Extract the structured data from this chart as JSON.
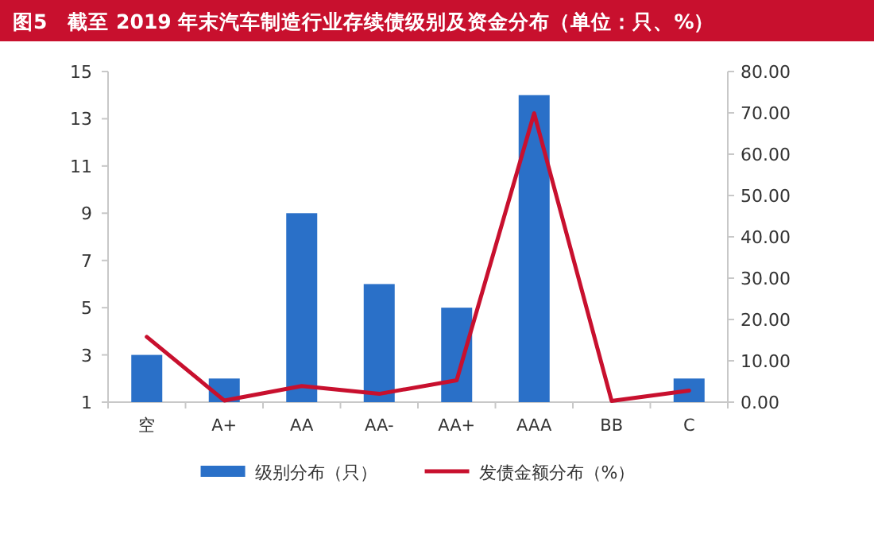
{
  "chart_data": {
    "type": "bar",
    "title": "图5　截至 2019 年末汽车制造行业存续债级别及资金分布（单位：只、%）",
    "categories": [
      "空",
      "A+",
      "AA",
      "AA-",
      "AA+",
      "AAA",
      "BB",
      "C"
    ],
    "series": [
      {
        "name": "级别分布（只）",
        "color": "#2a70c8",
        "values": [
          3,
          2,
          9,
          6,
          5,
          14,
          1,
          2
        ]
      },
      {
        "name": "发债金额分布（%）",
        "type": "line",
        "axis": "y2",
        "color": "#c8102e",
        "values": [
          15.8,
          0.4,
          3.9,
          2.0,
          5.3,
          69.9,
          0.3,
          2.8
        ]
      }
    ],
    "ylim": [
      1,
      15
    ],
    "yticks": [
      1,
      3,
      5,
      7,
      9,
      11,
      13,
      15
    ],
    "y2lim": [
      0,
      80
    ],
    "y2ticks": [
      {
        "value": 0,
        "label": "0.00"
      },
      {
        "value": 10,
        "label": "10.00"
      },
      {
        "value": 20,
        "label": "20.00"
      },
      {
        "value": 30,
        "label": "30.00"
      },
      {
        "value": 40,
        "label": "40.00"
      },
      {
        "value": 50,
        "label": "50.00"
      },
      {
        "value": 60,
        "label": "60.00"
      },
      {
        "value": 70,
        "label": "70.00"
      },
      {
        "value": 80,
        "label": "80.00"
      }
    ],
    "grid": false,
    "legend": "bottom",
    "marker": "none",
    "line_style": "solid"
  }
}
